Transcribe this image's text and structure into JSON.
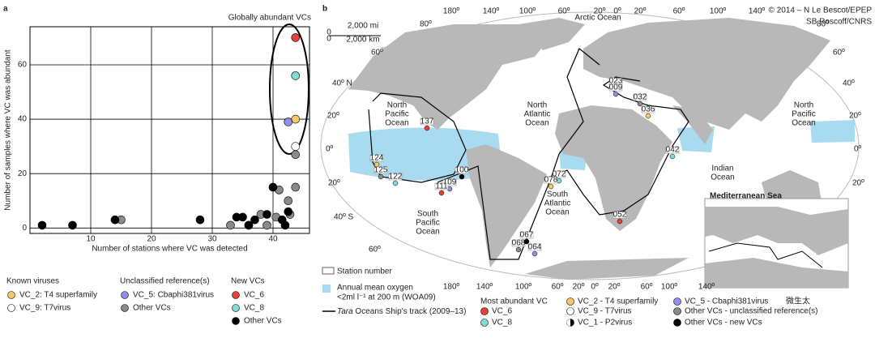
{
  "chart_data": {
    "type": "scatter",
    "panel_label": "a",
    "annotation": "Globally abundant VCs",
    "x_label": "Number of stations where VC was detected",
    "y_label": "Number of samples where VC was abundant",
    "xlim": [
      0,
      46
    ],
    "ylim": [
      -2,
      74
    ],
    "xticks": [
      10,
      20,
      30,
      40
    ],
    "yticks": [
      0,
      20,
      40,
      60
    ],
    "grid": true,
    "legend_titles": [
      "Known viruses",
      "Unclassified reference(s)",
      "New VCs"
    ],
    "series": [
      {
        "name": "VC_2: T4 superfamily",
        "color": "#f6c86b",
        "x": [
          43.7
        ],
        "values": [
          40
        ]
      },
      {
        "name": "VC_9: T7virus",
        "color": "#ffffff",
        "x": [
          43.7
        ],
        "values": [
          30
        ]
      },
      {
        "name": "VC_5: Cbaphi381virus",
        "color": "#9090e8",
        "x": [
          42.5
        ],
        "values": [
          39
        ]
      },
      {
        "name": "Other VCs",
        "color": "#8a8a8a",
        "x": [
          15,
          33,
          36,
          38,
          39,
          41,
          42.5,
          43.7,
          40.5,
          42.8,
          43.7
        ],
        "values": [
          3,
          1,
          1,
          5,
          1,
          14,
          10,
          15,
          4,
          5,
          27
        ]
      },
      {
        "name": "VC_6",
        "color": "#e8413c",
        "x": [
          43.7
        ],
        "values": [
          70
        ]
      },
      {
        "name": "VC_8",
        "color": "#82dbd1",
        "x": [
          43.7
        ],
        "values": [
          56
        ]
      },
      {
        "name": "Other VCs",
        "color": "#000000",
        "x": [
          2,
          7,
          14,
          28,
          34,
          35,
          36,
          37,
          40,
          39,
          42.5,
          42,
          41.5
        ],
        "values": [
          1,
          1,
          3,
          3,
          4,
          4,
          1,
          3,
          15,
          5,
          6,
          1,
          3
        ]
      }
    ]
  },
  "map": {
    "panel_label": "b",
    "credit": [
      "© 2014 – N Le Bescot/EPEP",
      "SB Roscoff/CNRS"
    ],
    "scale_labels": [
      "2,000 mi",
      "0",
      "0",
      "2,000 km"
    ],
    "longitudes_top": [
      "180º",
      "140º",
      "100º",
      "60º",
      "20º",
      "0º",
      "20º",
      "60º",
      "100º",
      "140º"
    ],
    "longitudes_bottom": [
      "180º",
      "140º",
      "100º",
      "60º",
      "20º",
      "0º",
      "20º",
      "60º",
      "100º",
      "140º"
    ],
    "latitudes_left": [
      "80º",
      "60º",
      "40º N",
      "20º",
      "0º",
      "20º",
      "40º S",
      "60º"
    ],
    "latitudes_right": [
      "80º",
      "60º",
      "40º",
      "20º",
      "0º",
      "20º"
    ],
    "oceans": [
      [
        "Arctic Ocean"
      ],
      [
        "North",
        "Pacific",
        "Ocean"
      ],
      [
        "North",
        "Atlantic",
        "Ocean"
      ],
      [
        "North",
        "Pacific",
        "Ocean"
      ],
      [
        "Indian",
        "Ocean"
      ],
      [
        "South",
        "Pacific",
        "Ocean"
      ],
      [
        "South",
        "Atlantic",
        "Ocean"
      ]
    ],
    "inset_title": "Mediterranean Sea",
    "stations": [
      "137",
      "122",
      "124",
      "125",
      "100",
      "109",
      "111",
      "072",
      "078",
      "068",
      "067",
      "064",
      "052",
      "042",
      "036",
      "032",
      "023",
      "009"
    ],
    "legend": {
      "station": "Station number",
      "oxygen": [
        "Annual mean oxygen",
        "<2ml l⁻¹ at 200 m (WOA09)"
      ],
      "track": [
        "Tara",
        " Oceans Ship's track (2009–13)"
      ],
      "vc_title": "Most abundant VC",
      "vc_items": [
        {
          "name": "VC_6",
          "color": "#e8413c"
        },
        {
          "name": "VC_8",
          "color": "#82dbd1"
        },
        {
          "name": "VC_2 - T4 superfamily",
          "color": "#f6c86b"
        },
        {
          "name": "VC_9 - T7virus",
          "color": "#ffffff"
        },
        {
          "name": "VC_1 - P2virus",
          "color": "#000000"
        },
        {
          "name": "VC_5 - Cbaphi381virus",
          "color": "#9090e8"
        },
        {
          "name": "Other VCs - unclassified reference(s)",
          "color": "#8a8a8a"
        },
        {
          "name": "Other VCs - new VCs",
          "color": "#000000"
        }
      ]
    },
    "watermark": "微生太"
  }
}
